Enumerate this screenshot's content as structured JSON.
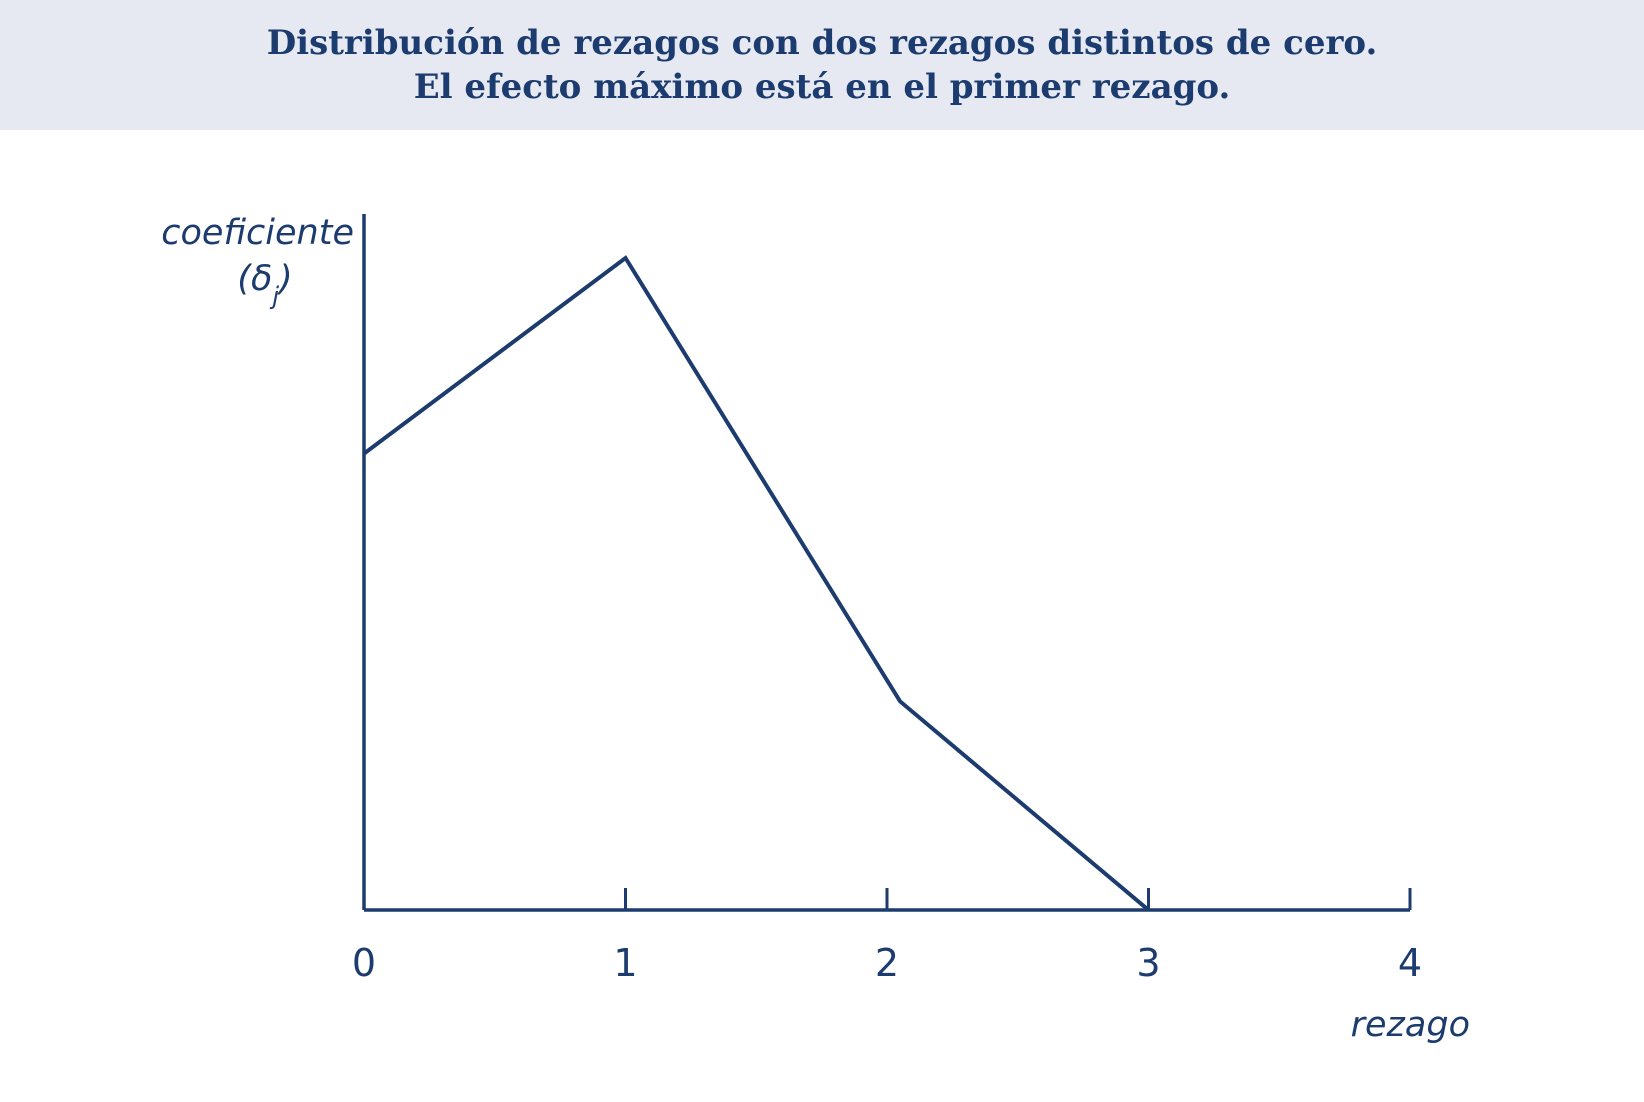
{
  "header": {
    "title_line1": "Distribución de rezagos con dos rezagos distintos de cero.",
    "title_line2": "El efecto máximo está en el primer rezago."
  },
  "colors": {
    "header_bg": "#e6e9f1",
    "ink": "#1c3b6e"
  },
  "chart_data": {
    "type": "line",
    "title": "Distribución de rezagos con dos rezagos distintos de cero. El efecto máximo está en el primer rezago.",
    "xlabel": "rezago",
    "ylabel": "coeficiente",
    "ylabel_symbol": "(δj)",
    "x_ticks": [
      "0",
      "1",
      "2",
      "3",
      "4"
    ],
    "xlim": [
      0,
      4
    ],
    "ylim": [
      0,
      1
    ],
    "y_ticks_shown": false,
    "grid": false,
    "series": [
      {
        "x": [
          0,
          1,
          2.05,
          3
        ],
        "y": [
          0.7,
          1.0,
          0.32,
          0.0
        ]
      }
    ]
  }
}
